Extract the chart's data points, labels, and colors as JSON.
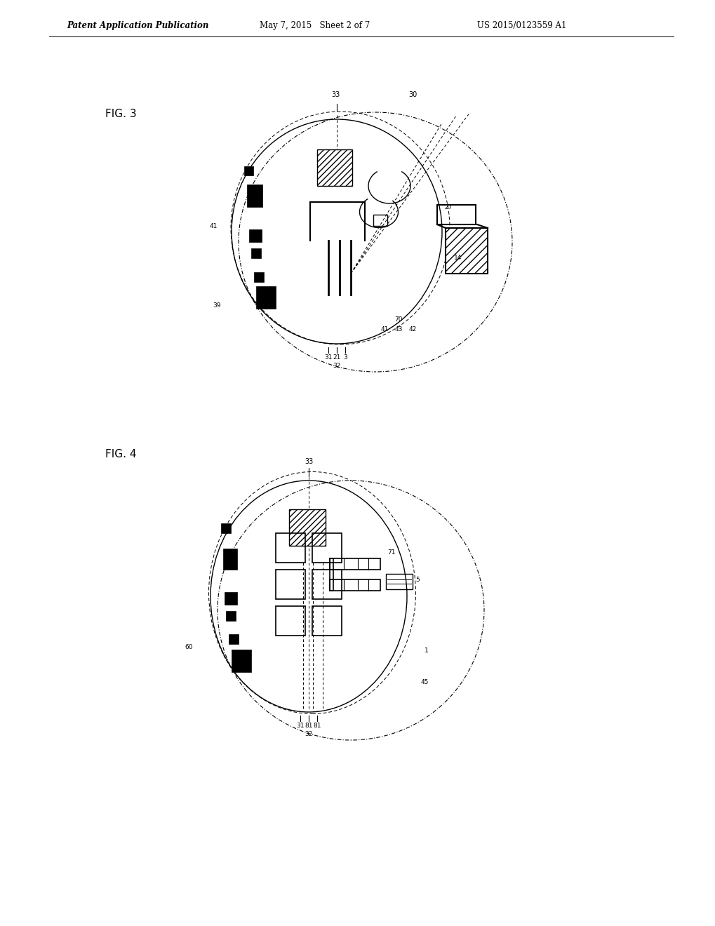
{
  "header_left": "Patent Application Publication",
  "header_mid": "May 7, 2015   Sheet 2 of 7",
  "header_right": "US 2015/0123559 A1",
  "fig3_label": "FIG. 3",
  "fig4_label": "FIG. 4",
  "bg_color": "#ffffff",
  "line_color": "#000000"
}
